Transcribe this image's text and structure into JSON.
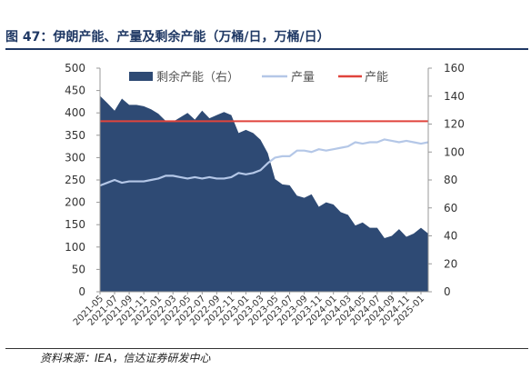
{
  "figure": {
    "title": "图 47：伊朗产能、产量及剩余产能（万桶/日，万桶/日）",
    "source": "资料来源：IEA，信达证券研发中心"
  },
  "colors": {
    "area": "#2e4a74",
    "production": "#b4c7e7",
    "capacity": "#e0443c",
    "title": "#1f3864"
  },
  "chart_data": {
    "type": "area",
    "x": [
      "2021-05",
      "2021-06",
      "2021-07",
      "2021-08",
      "2021-09",
      "2021-10",
      "2021-11",
      "2021-12",
      "2022-01",
      "2022-02",
      "2022-03",
      "2022-04",
      "2022-05",
      "2022-06",
      "2022-07",
      "2022-08",
      "2022-09",
      "2022-10",
      "2022-11",
      "2022-12",
      "2023-01",
      "2023-02",
      "2023-03",
      "2023-04",
      "2023-05",
      "2023-06",
      "2023-07",
      "2023-08",
      "2023-09",
      "2023-10",
      "2023-11",
      "2023-12",
      "2024-01",
      "2024-02",
      "2024-03",
      "2024-04",
      "2024-05",
      "2024-06",
      "2024-07",
      "2024-08",
      "2024-09",
      "2024-10",
      "2024-11",
      "2024-12",
      "2025-01",
      "2025-02"
    ],
    "xtick_labels": [
      "2021-05",
      "2021-07",
      "2021-09",
      "2021-11",
      "2022-01",
      "2022-03",
      "2022-05",
      "2022-07",
      "2022-09",
      "2022-11",
      "2023-01",
      "2023-03",
      "2023-05",
      "2023-07",
      "2023-09",
      "2023-11",
      "2024-01",
      "2024-03",
      "2024-05",
      "2024-07",
      "2024-09",
      "2024-11",
      "2025-01"
    ],
    "series": [
      {
        "name": "剩余产能（右）",
        "type": "area",
        "axis": "left",
        "values": [
          438,
          422,
          405,
          432,
          418,
          418,
          415,
          408,
          398,
          382,
          380,
          390,
          400,
          385,
          405,
          388,
          395,
          402,
          395,
          355,
          362,
          355,
          340,
          310,
          252,
          240,
          238,
          215,
          210,
          218,
          190,
          200,
          195,
          178,
          172,
          148,
          155,
          143,
          143,
          120,
          125,
          140,
          123,
          130,
          143,
          130
        ]
      },
      {
        "name": "产量",
        "type": "line",
        "axis": "right",
        "values": [
          76,
          78,
          80,
          78,
          79,
          79,
          79,
          80,
          81,
          83,
          83,
          82,
          81,
          82,
          81,
          82,
          81,
          81,
          82,
          85,
          84,
          85,
          87,
          92,
          96,
          97,
          97,
          101,
          101,
          100,
          102,
          101,
          102,
          103,
          104,
          107,
          106,
          107,
          107,
          109,
          108,
          107,
          108,
          107,
          106,
          107
        ]
      },
      {
        "name": "产能",
        "type": "line",
        "axis": "right",
        "values": [
          122,
          122,
          122,
          122,
          122,
          122,
          122,
          122,
          122,
          122,
          122,
          122,
          122,
          122,
          122,
          122,
          122,
          122,
          122,
          122,
          122,
          122,
          122,
          122,
          122,
          122,
          122,
          122,
          122,
          122,
          122,
          122,
          122,
          122,
          122,
          122,
          122,
          122,
          122,
          122,
          122,
          122,
          122,
          122,
          122,
          122
        ]
      }
    ],
    "y_left": {
      "min": 0,
      "max": 500,
      "ticks": [
        0,
        50,
        100,
        150,
        200,
        250,
        300,
        350,
        400,
        450,
        500
      ]
    },
    "y_right": {
      "min": 0,
      "max": 160,
      "ticks": [
        0,
        20,
        40,
        60,
        80,
        100,
        120,
        140,
        160
      ]
    },
    "legend_position": "top-center",
    "grid": false
  }
}
